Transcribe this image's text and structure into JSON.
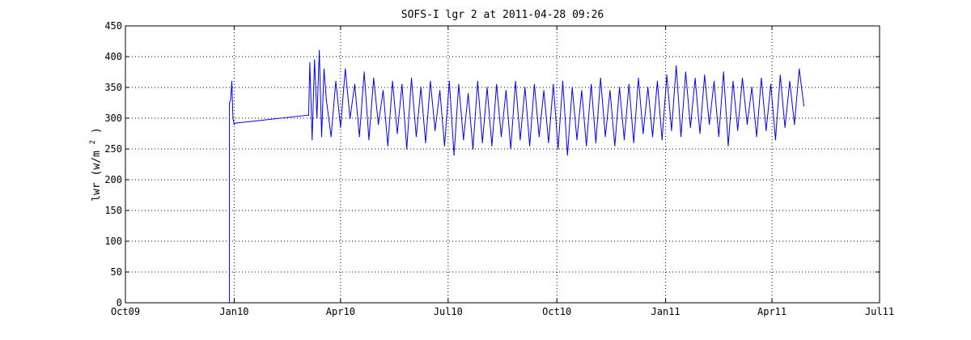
{
  "chart_data": {
    "type": "line",
    "title": "SOFS-I lgr 2 at 2011-04-28 09:26",
    "ylabel_main": "lwr  (w/m",
    "ylabel_sup": "2",
    "ylabel_end": ")",
    "xlabel": "",
    "ylim": [
      0,
      450
    ],
    "yticks": [
      0,
      50,
      100,
      150,
      200,
      250,
      300,
      350,
      400,
      450
    ],
    "xlim": [
      "2009-10-01",
      "2011-07-01"
    ],
    "xticks": [
      {
        "date": "2009-10-01",
        "label": "Oct09"
      },
      {
        "date": "2010-01-01",
        "label": "Jan10"
      },
      {
        "date": "2010-04-01",
        "label": "Apr10"
      },
      {
        "date": "2010-07-01",
        "label": "Jul10"
      },
      {
        "date": "2010-10-01",
        "label": "Oct10"
      },
      {
        "date": "2011-01-01",
        "label": "Jan11"
      },
      {
        "date": "2011-04-01",
        "label": "Apr11"
      },
      {
        "date": "2011-07-01",
        "label": "Jul11"
      }
    ],
    "grid": true,
    "series": [
      {
        "color": "#0000ff",
        "x": [
          "2009-12-28",
          "2009-12-28",
          "2009-12-29",
          "2009-12-30",
          "2009-12-31",
          "2010-01-01",
          "2010-01-02",
          "2010-03-05",
          "2010-03-06",
          "2010-03-08",
          "2010-03-10",
          "2010-03-12",
          "2010-03-14",
          "2010-03-16",
          "2010-03-18",
          "2010-03-20",
          "2010-03-24",
          "2010-03-28",
          "2010-04-01",
          "2010-04-05",
          "2010-04-09",
          "2010-04-13",
          "2010-04-17",
          "2010-04-21",
          "2010-04-25",
          "2010-04-29",
          "2010-05-03",
          "2010-05-07",
          "2010-05-11",
          "2010-05-15",
          "2010-05-19",
          "2010-05-23",
          "2010-05-27",
          "2010-05-31",
          "2010-06-04",
          "2010-06-08",
          "2010-06-12",
          "2010-06-16",
          "2010-06-20",
          "2010-06-24",
          "2010-06-28",
          "2010-07-02",
          "2010-07-06",
          "2010-07-10",
          "2010-07-14",
          "2010-07-18",
          "2010-07-22",
          "2010-07-26",
          "2010-07-30",
          "2010-08-03",
          "2010-08-07",
          "2010-08-11",
          "2010-08-15",
          "2010-08-19",
          "2010-08-23",
          "2010-08-27",
          "2010-08-31",
          "2010-09-04",
          "2010-09-08",
          "2010-09-12",
          "2010-09-16",
          "2010-09-20",
          "2010-09-24",
          "2010-09-28",
          "2010-10-02",
          "2010-10-06",
          "2010-10-10",
          "2010-10-14",
          "2010-10-18",
          "2010-10-22",
          "2010-10-26",
          "2010-10-30",
          "2010-11-03",
          "2010-11-07",
          "2010-11-11",
          "2010-11-15",
          "2010-11-19",
          "2010-11-23",
          "2010-11-27",
          "2010-12-01",
          "2010-12-05",
          "2010-12-09",
          "2010-12-13",
          "2010-12-17",
          "2010-12-21",
          "2010-12-25",
          "2010-12-29",
          "2011-01-02",
          "2011-01-06",
          "2011-01-10",
          "2011-01-14",
          "2011-01-18",
          "2011-01-22",
          "2011-01-26",
          "2011-01-30",
          "2011-02-03",
          "2011-02-07",
          "2011-02-11",
          "2011-02-15",
          "2011-02-19",
          "2011-02-23",
          "2011-02-27",
          "2011-03-03",
          "2011-03-07",
          "2011-03-11",
          "2011-03-15",
          "2011-03-19",
          "2011-03-23",
          "2011-03-27",
          "2011-03-31",
          "2011-04-04",
          "2011-04-08",
          "2011-04-12",
          "2011-04-16",
          "2011-04-20",
          "2011-04-24",
          "2011-04-28"
        ],
        "y": [
          0,
          325,
          330,
          360,
          300,
          290,
          292,
          305,
          390,
          265,
          395,
          300,
          410,
          270,
          380,
          330,
          270,
          360,
          285,
          380,
          300,
          355,
          270,
          375,
          265,
          365,
          290,
          345,
          255,
          360,
          275,
          355,
          250,
          365,
          270,
          350,
          260,
          360,
          280,
          345,
          255,
          360,
          240,
          355,
          265,
          340,
          250,
          360,
          260,
          350,
          255,
          355,
          270,
          345,
          250,
          360,
          265,
          350,
          255,
          355,
          270,
          345,
          260,
          355,
          250,
          360,
          240,
          350,
          265,
          345,
          255,
          355,
          260,
          365,
          270,
          345,
          255,
          350,
          265,
          355,
          260,
          365,
          275,
          350,
          270,
          360,
          265,
          370,
          280,
          385,
          270,
          375,
          285,
          365,
          275,
          370,
          290,
          360,
          270,
          375,
          255,
          360,
          280,
          365,
          290,
          350,
          270,
          365,
          280,
          355,
          265,
          370,
          285,
          360,
          290,
          380,
          320
        ]
      }
    ]
  }
}
